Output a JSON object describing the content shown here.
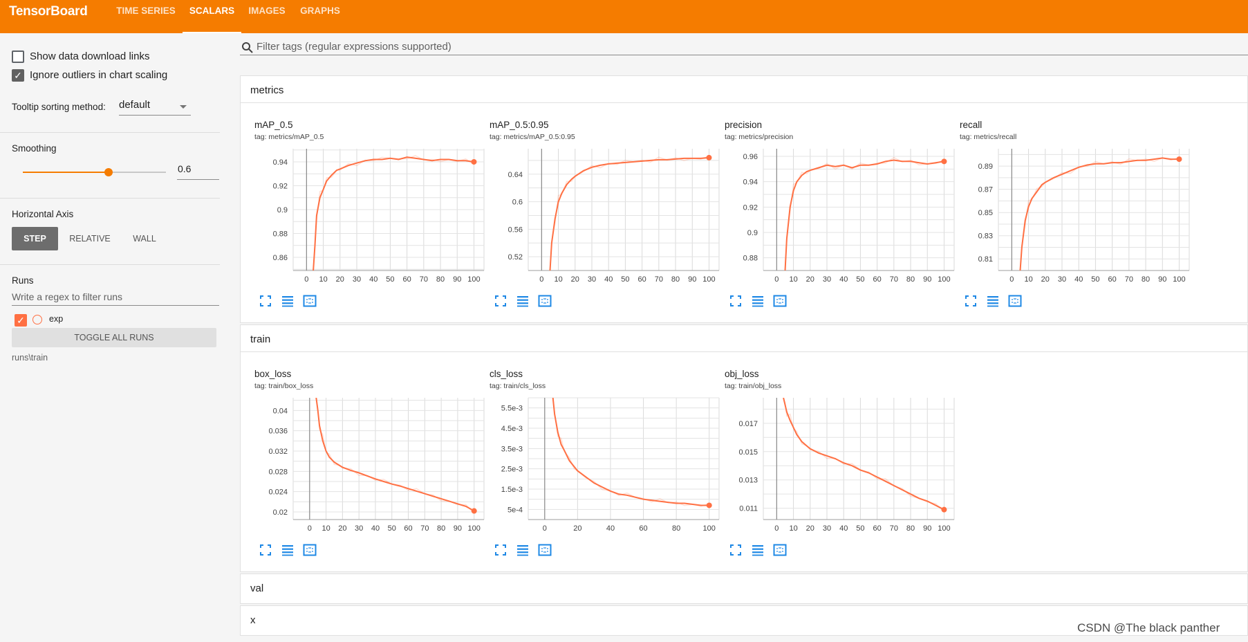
{
  "header": {
    "title": "TensorBoard",
    "tabs": [
      {
        "label": "TIME SERIES",
        "active": false
      },
      {
        "label": "SCALARS",
        "active": true
      },
      {
        "label": "IMAGES",
        "active": false
      },
      {
        "label": "GRAPHS",
        "active": false
      }
    ],
    "bg_color": "#f57c00"
  },
  "sidebar": {
    "show_download_label": "Show data download links",
    "show_download_checked": false,
    "ignore_outliers_label": "Ignore outliers in chart scaling",
    "ignore_outliers_checked": true,
    "tooltip_label": "Tooltip sorting method:",
    "tooltip_value": "default",
    "smoothing_label": "Smoothing",
    "smoothing_value": "0.6",
    "smoothing_level": 0.6,
    "axis_label": "Horizontal Axis",
    "axis_buttons": [
      "STEP",
      "RELATIVE",
      "WALL"
    ],
    "axis_active": "STEP",
    "runs_label": "Runs",
    "regex_placeholder": "Write a regex to filter runs",
    "run_name": "exp",
    "run_color": "#ff7043",
    "toggle_label": "TOGGLE ALL RUNS",
    "run_dir": "runs\\train"
  },
  "main": {
    "filter_placeholder": "Filter tags (regular expressions supported)",
    "sections": [
      {
        "title": "metrics"
      },
      {
        "title": "train"
      },
      {
        "title": "val"
      },
      {
        "title": "x"
      }
    ]
  },
  "icons": [
    "search-icon",
    "fullscreen-icon",
    "log-scale-icon",
    "fit-domain-icon",
    "chevron-down-icon",
    "check-icon"
  ],
  "watermark": "CSDN @The black panther",
  "chart_data": [
    {
      "type": "line",
      "title": "mAP_0.5",
      "tag": "tag: metrics/mAP_0.5",
      "xticks": [
        0,
        10,
        20,
        30,
        40,
        50,
        60,
        70,
        80,
        90,
        100
      ],
      "yticks": [
        "0.86",
        "0.88",
        "0.9",
        "0.92",
        "0.94"
      ],
      "ytick_values": [
        0.86,
        0.88,
        0.9,
        0.92,
        0.94
      ],
      "xlim": [
        -8,
        106
      ],
      "ylim": [
        0.849,
        0.951
      ],
      "x": [
        4,
        5,
        6,
        8,
        10,
        12,
        15,
        18,
        20,
        25,
        30,
        35,
        40,
        45,
        50,
        55,
        60,
        65,
        70,
        75,
        80,
        85,
        90,
        95,
        100
      ],
      "y": [
        0.849,
        0.87,
        0.895,
        0.91,
        0.917,
        0.924,
        0.929,
        0.933,
        0.934,
        0.937,
        0.939,
        0.941,
        0.942,
        0.942,
        0.943,
        0.942,
        0.944,
        0.943,
        0.942,
        0.941,
        0.942,
        0.942,
        0.941,
        0.941,
        0.94
      ],
      "series_name": "exp",
      "grid": true
    },
    {
      "type": "line",
      "title": "mAP_0.5:0.95",
      "tag": "tag: metrics/mAP_0.5:0.95",
      "xticks": [
        0,
        10,
        20,
        30,
        40,
        50,
        60,
        70,
        80,
        90,
        100
      ],
      "yticks": [
        "0.52",
        "0.56",
        "0.6",
        "0.64"
      ],
      "ytick_values": [
        0.52,
        0.56,
        0.6,
        0.64
      ],
      "xlim": [
        -8,
        106
      ],
      "ylim": [
        0.5,
        0.677
      ],
      "x": [
        5,
        6,
        8,
        10,
        12,
        15,
        18,
        20,
        25,
        30,
        35,
        40,
        45,
        50,
        55,
        60,
        65,
        70,
        75,
        80,
        85,
        90,
        95,
        100
      ],
      "y": [
        0.5,
        0.54,
        0.575,
        0.6,
        0.612,
        0.625,
        0.633,
        0.637,
        0.645,
        0.65,
        0.653,
        0.655,
        0.656,
        0.657,
        0.658,
        0.659,
        0.66,
        0.661,
        0.661,
        0.662,
        0.663,
        0.663,
        0.663,
        0.664
      ],
      "series_name": "exp",
      "grid": true
    },
    {
      "type": "line",
      "title": "precision",
      "tag": "tag: metrics/precision",
      "xticks": [
        0,
        10,
        20,
        30,
        40,
        50,
        60,
        70,
        80,
        90,
        100
      ],
      "yticks": [
        "0.88",
        "0.9",
        "0.92",
        "0.94",
        "0.96"
      ],
      "ytick_values": [
        0.88,
        0.9,
        0.92,
        0.94,
        0.96
      ],
      "xlim": [
        -8,
        106
      ],
      "ylim": [
        0.87,
        0.966
      ],
      "x": [
        5,
        6,
        8,
        10,
        12,
        15,
        18,
        20,
        25,
        30,
        35,
        40,
        45,
        50,
        55,
        60,
        65,
        70,
        75,
        80,
        85,
        90,
        95,
        100
      ],
      "y": [
        0.87,
        0.895,
        0.92,
        0.933,
        0.94,
        0.945,
        0.948,
        0.949,
        0.951,
        0.953,
        0.952,
        0.953,
        0.951,
        0.953,
        0.953,
        0.954,
        0.956,
        0.957,
        0.956,
        0.956,
        0.955,
        0.954,
        0.955,
        0.956
      ],
      "series_name": "exp",
      "grid": true
    },
    {
      "type": "line",
      "title": "recall",
      "tag": "tag: metrics/recall",
      "xticks": [
        0,
        10,
        20,
        30,
        40,
        50,
        60,
        70,
        80,
        90,
        100
      ],
      "yticks": [
        "0.81",
        "0.83",
        "0.85",
        "0.87",
        "0.89"
      ],
      "ytick_values": [
        0.81,
        0.83,
        0.85,
        0.87,
        0.89
      ],
      "xlim": [
        -8,
        106
      ],
      "ylim": [
        0.8,
        0.905
      ],
      "x": [
        5,
        6,
        8,
        10,
        12,
        15,
        18,
        20,
        25,
        30,
        35,
        40,
        45,
        50,
        55,
        60,
        65,
        70,
        75,
        80,
        85,
        90,
        95,
        100
      ],
      "y": [
        0.8,
        0.82,
        0.843,
        0.855,
        0.862,
        0.868,
        0.874,
        0.876,
        0.88,
        0.883,
        0.886,
        0.889,
        0.891,
        0.892,
        0.892,
        0.893,
        0.893,
        0.894,
        0.895,
        0.895,
        0.896,
        0.897,
        0.896,
        0.896
      ],
      "series_name": "exp",
      "grid": true
    },
    {
      "type": "line",
      "title": "box_loss",
      "tag": "tag: train/box_loss",
      "xticks": [
        0,
        10,
        20,
        30,
        40,
        50,
        60,
        70,
        80,
        90,
        100
      ],
      "yticks": [
        "0.02",
        "0.024",
        "0.028",
        "0.032",
        "0.036",
        "0.04"
      ],
      "ytick_values": [
        0.02,
        0.024,
        0.028,
        0.032,
        0.036,
        0.04
      ],
      "xlim": [
        -10,
        106
      ],
      "ylim": [
        0.0185,
        0.0425
      ],
      "x": [
        4,
        5,
        6,
        8,
        10,
        12,
        15,
        18,
        20,
        25,
        30,
        35,
        40,
        45,
        50,
        55,
        60,
        65,
        70,
        75,
        80,
        85,
        90,
        95,
        100
      ],
      "y": [
        0.0425,
        0.04,
        0.037,
        0.034,
        0.032,
        0.0308,
        0.0298,
        0.0292,
        0.0288,
        0.0282,
        0.0277,
        0.0271,
        0.0265,
        0.026,
        0.0255,
        0.0251,
        0.0246,
        0.0241,
        0.0236,
        0.0231,
        0.0226,
        0.0221,
        0.0216,
        0.0211,
        0.0202
      ],
      "series_name": "exp",
      "grid": true
    },
    {
      "type": "line",
      "title": "cls_loss",
      "tag": "tag: train/cls_loss",
      "xticks": [
        0,
        20,
        40,
        60,
        80,
        100
      ],
      "yticks": [
        "5e-4",
        "1.5e-3",
        "2.5e-3",
        "3.5e-3",
        "4.5e-3",
        "5.5e-3"
      ],
      "ytick_values": [
        0.0005,
        0.0015,
        0.0025,
        0.0035,
        0.0045,
        0.0055
      ],
      "xlim": [
        -10,
        106
      ],
      "ylim": [
        0.0,
        0.006
      ],
      "x": [
        5,
        6,
        8,
        10,
        12,
        15,
        18,
        20,
        25,
        30,
        35,
        40,
        45,
        50,
        55,
        60,
        65,
        70,
        75,
        80,
        85,
        90,
        95,
        100
      ],
      "y": [
        0.006,
        0.0052,
        0.0043,
        0.0037,
        0.0034,
        0.0029,
        0.0026,
        0.0024,
        0.0021,
        0.0018,
        0.0016,
        0.0014,
        0.00125,
        0.0012,
        0.0011,
        0.001,
        0.00095,
        0.0009,
        0.00085,
        0.0008,
        0.0008,
        0.00075,
        0.0007,
        0.0007
      ],
      "series_name": "exp",
      "grid": true
    },
    {
      "type": "line",
      "title": "obj_loss",
      "tag": "tag: train/obj_loss",
      "xticks": [
        0,
        10,
        20,
        30,
        40,
        50,
        60,
        70,
        80,
        90,
        100
      ],
      "yticks": [
        "0.011",
        "0.013",
        "0.015",
        "0.017"
      ],
      "ytick_values": [
        0.011,
        0.013,
        0.015,
        0.017
      ],
      "xlim": [
        -8,
        106
      ],
      "ylim": [
        0.0102,
        0.0188
      ],
      "x": [
        4,
        5,
        6,
        8,
        10,
        12,
        15,
        18,
        20,
        25,
        30,
        35,
        40,
        45,
        50,
        55,
        60,
        65,
        70,
        75,
        80,
        85,
        90,
        95,
        100
      ],
      "y": [
        0.0188,
        0.0183,
        0.0178,
        0.0172,
        0.0167,
        0.0162,
        0.0157,
        0.0154,
        0.0152,
        0.0149,
        0.0147,
        0.0145,
        0.0142,
        0.014,
        0.0137,
        0.0135,
        0.0132,
        0.0129,
        0.0126,
        0.0123,
        0.012,
        0.0117,
        0.0115,
        0.0112,
        0.0109
      ],
      "series_name": "exp",
      "grid": true
    }
  ]
}
